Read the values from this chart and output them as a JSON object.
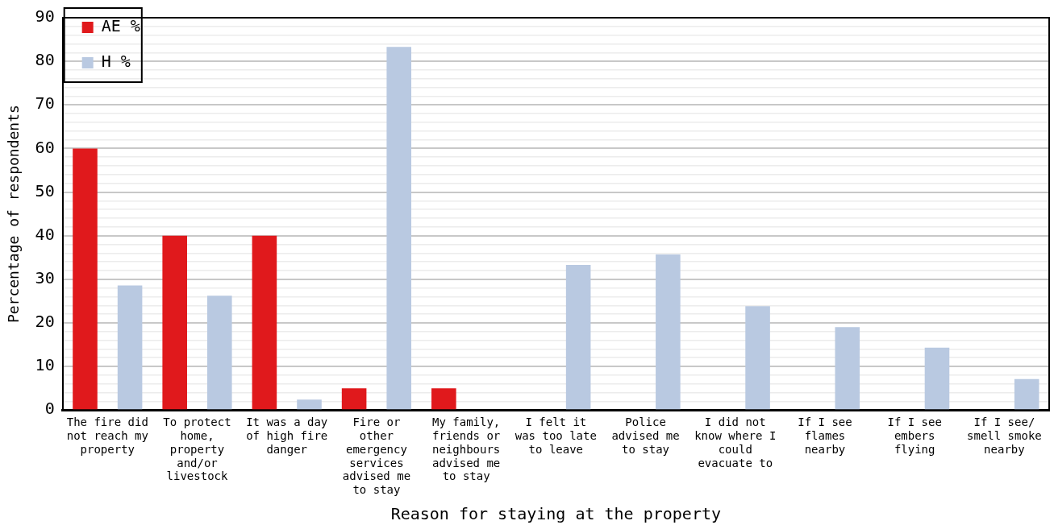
{
  "chart_data": {
    "type": "bar",
    "xlabel": "Reason for staying at the property",
    "ylabel": "Percentage of respondents",
    "categories": [
      "The fire did not reach my property",
      "To protect home, property and/or livestock",
      "It was a day of high fire danger",
      "Fire or other emergency services advised me to stay",
      "My family, friends or neighbours advised me to stay",
      "I felt it was too late to leave",
      "Police advised me to stay",
      "I did not know where I could evacuate to",
      "If I see flames nearby",
      "If I see embers flying",
      "If I see/ smell smoke nearby"
    ],
    "series": [
      {
        "name": "AE %",
        "color": "#e0191c",
        "values": [
          60,
          40,
          40,
          5,
          5,
          null,
          null,
          null,
          null,
          null,
          null
        ]
      },
      {
        "name": "H %",
        "color": "#b9c9e1",
        "values": [
          28.6,
          26.2,
          2.4,
          83.3,
          null,
          33.3,
          35.7,
          23.8,
          19.0,
          14.3,
          7.1
        ]
      }
    ],
    "ylim": [
      0,
      90
    ],
    "yticks": [
      0,
      {
        "value": 2,
        "label": null
      },
      {
        "value": 4,
        "label": null
      },
      {
        "value": 6,
        "label": null
      },
      {
        "value": 8,
        "label": null
      },
      10,
      {
        "value": 12,
        "label": null
      },
      {
        "value": 14,
        "label": null
      },
      {
        "value": 16,
        "label": null
      },
      {
        "value": 18,
        "label": null
      },
      20,
      {
        "value": 22,
        "label": null
      },
      {
        "value": 24,
        "label": null
      },
      {
        "value": 26,
        "label": null
      },
      {
        "value": 28,
        "label": null
      },
      30,
      {
        "value": 32,
        "label": null
      },
      {
        "value": 34,
        "label": null
      },
      {
        "value": 36,
        "label": null
      },
      {
        "value": 38,
        "label": null
      },
      40,
      {
        "value": 42,
        "label": null
      },
      {
        "value": 44,
        "label": null
      },
      {
        "value": 46,
        "label": null
      },
      {
        "value": 48,
        "label": null
      },
      50,
      {
        "value": 52,
        "label": null
      },
      {
        "value": 54,
        "label": null
      },
      {
        "value": 56,
        "label": null
      },
      {
        "value": 58,
        "label": null
      },
      60,
      {
        "value": 62,
        "label": null
      },
      {
        "value": 64,
        "label": null
      },
      {
        "value": 66,
        "label": null
      },
      {
        "value": 68,
        "label": null
      },
      70,
      {
        "value": 72,
        "label": null
      },
      {
        "value": 74,
        "label": null
      },
      {
        "value": 76,
        "label": null
      },
      {
        "value": 78,
        "label": null
      },
      80,
      {
        "value": 82,
        "label": null
      },
      {
        "value": 84,
        "label": null
      },
      {
        "value": 86,
        "label": null
      },
      {
        "value": 88,
        "label": null
      },
      90
    ],
    "grid": "y",
    "legend": "top left"
  }
}
